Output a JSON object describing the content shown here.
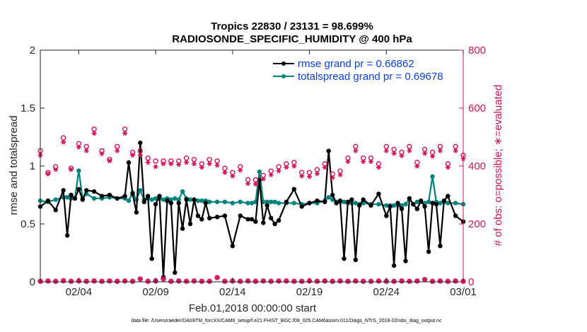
{
  "colors": {
    "rmse": "#000000",
    "spread": "#00827f",
    "obs": "#d6105a",
    "legend_text": "#0a3fe0",
    "axis": "#262626"
  },
  "footer": "data file: /Users/raeder/DAI/ATM_forcXX/CAM6_setup/f.e21.FHIST_BGC.f09_025.CAM6assim.011/Diags_NTrS_2018-02/obs_diag_output.nc",
  "chart_data": {
    "type": "line",
    "title": "Tropics 22830 / 23131 = 98.699%",
    "subtitle": "RADIOSONDE_SPECIFIC_HUMIDITY @ 400 hPa",
    "xlabel": "Feb.01,2018 00:00:00 start",
    "ylabel_left": "rmse and totalspread",
    "ylabel_right": "# of obs: o=possible; ∗=evaluated",
    "xlim": [
      0.5,
      28
    ],
    "ylim_left": [
      0,
      2
    ],
    "ylim_right": [
      0,
      800
    ],
    "grid": false,
    "legend_position": "top-right",
    "x_ticks": [
      {
        "x": 3,
        "label": "02/04"
      },
      {
        "x": 8,
        "label": "02/09"
      },
      {
        "x": 13,
        "label": "02/14"
      },
      {
        "x": 18,
        "label": "02/19"
      },
      {
        "x": 23,
        "label": "02/24"
      },
      {
        "x": 28,
        "label": "03/01"
      }
    ],
    "y_ticks_left": [
      {
        "v": 0,
        "label": "0"
      },
      {
        "v": 0.5,
        "label": "0.5"
      },
      {
        "v": 1,
        "label": "1"
      },
      {
        "v": 1.5,
        "label": "1.5"
      },
      {
        "v": 2,
        "label": "2"
      }
    ],
    "y_ticks_right": [
      {
        "v": 0,
        "label": "0"
      },
      {
        "v": 200,
        "label": "200"
      },
      {
        "v": 400,
        "label": "400"
      },
      {
        "v": 600,
        "label": "600"
      },
      {
        "v": 800,
        "label": "800"
      }
    ],
    "series": [
      {
        "name": "rmse grand pr = 0.66862",
        "kind": "rmse",
        "x": [
          0.5,
          1,
          1.5,
          2,
          2.25,
          2.5,
          2.75,
          3,
          3.25,
          3.5,
          4,
          4.5,
          5,
          5.5,
          6,
          6.25,
          6.5,
          6.75,
          7,
          7.25,
          7.5,
          7.75,
          8,
          8.25,
          8.5,
          8.75,
          9,
          9.25,
          9.5,
          9.75,
          10,
          10.25,
          10.5,
          10.75,
          11,
          11.25,
          11.5,
          12,
          12.5,
          13,
          13.5,
          14,
          14.25,
          14.5,
          14.75,
          15,
          15.25,
          15.5,
          15.75,
          16,
          16.5,
          17,
          17.5,
          18,
          18.5,
          19,
          19.25,
          19.5,
          19.75,
          20,
          20.25,
          20.5,
          20.75,
          21,
          21.25,
          21.5,
          22,
          22.5,
          23,
          23.25,
          23.5,
          23.75,
          24,
          24.25,
          24.5,
          24.75,
          25,
          25.25,
          25.5,
          25.75,
          26,
          26.25,
          26.5,
          26.75,
          27,
          27.5,
          28
        ],
        "values": [
          0.65,
          0.7,
          0.62,
          0.79,
          0.4,
          0.75,
          0.72,
          0.8,
          0.71,
          0.79,
          0.78,
          0.74,
          0.75,
          0.72,
          0.74,
          1.03,
          0.76,
          0.6,
          1.2,
          0.69,
          0.74,
          0.2,
          0.67,
          0.74,
          0.04,
          0.7,
          0.68,
          0.08,
          0.68,
          0.46,
          0.71,
          0.5,
          0.71,
          0.57,
          0.54,
          0.68,
          0.55,
          0.56,
          0.57,
          0.31,
          0.57,
          0.54,
          0.54,
          0.52,
          0.88,
          0.51,
          0.66,
          0.55,
          0.5,
          0.53,
          0.69,
          0.8,
          0.65,
          0.68,
          0.7,
          0.69,
          1.13,
          0.75,
          0.68,
          0.7,
          0.2,
          0.69,
          0.71,
          0.19,
          0.66,
          0.71,
          0.66,
          0.76,
          0.57,
          0.65,
          0.14,
          0.68,
          0.63,
          0.18,
          0.72,
          0.67,
          0.63,
          0.7,
          0.65,
          0.26,
          0.68,
          0.67,
          0.31,
          0.7,
          0.74,
          0.57,
          0.52
        ]
      },
      {
        "name": "totalspread grand pr = 0.69678",
        "kind": "spread",
        "x": [
          0.5,
          1,
          1.5,
          2,
          2.25,
          2.5,
          2.75,
          3,
          3.25,
          3.5,
          4,
          4.5,
          5,
          5.5,
          6,
          6.25,
          6.5,
          6.75,
          7,
          7.25,
          7.5,
          7.75,
          8,
          8.25,
          8.5,
          8.75,
          9,
          9.25,
          9.5,
          9.75,
          10,
          10.25,
          10.5,
          10.75,
          11,
          11.25,
          11.5,
          12,
          12.5,
          13,
          13.5,
          14,
          14.25,
          14.5,
          14.75,
          15,
          15.25,
          15.5,
          15.75,
          16,
          16.5,
          17,
          17.5,
          18,
          18.5,
          19,
          19.25,
          19.5,
          19.75,
          20,
          20.25,
          20.5,
          20.75,
          21,
          21.25,
          21.5,
          22,
          22.5,
          23,
          23.25,
          23.5,
          23.75,
          24,
          24.25,
          24.5,
          24.75,
          25,
          25.25,
          25.5,
          25.75,
          26,
          26.25,
          26.5,
          26.75,
          27,
          27.5,
          28
        ],
        "values": [
          0.7,
          0.69,
          0.71,
          0.73,
          0.73,
          0.72,
          0.72,
          0.96,
          0.72,
          0.76,
          0.72,
          0.72,
          0.73,
          0.72,
          0.72,
          0.7,
          0.77,
          0.71,
          0.79,
          0.71,
          0.72,
          0.71,
          0.72,
          0.72,
          0.71,
          0.72,
          0.71,
          0.72,
          0.71,
          0.78,
          0.72,
          0.71,
          0.71,
          0.7,
          0.7,
          0.7,
          0.69,
          0.69,
          0.69,
          0.68,
          0.69,
          0.68,
          0.68,
          0.69,
          0.95,
          0.69,
          0.69,
          0.69,
          0.69,
          0.68,
          0.68,
          0.68,
          0.67,
          0.68,
          0.68,
          0.7,
          0.73,
          0.71,
          0.69,
          0.69,
          0.69,
          0.68,
          0.68,
          0.68,
          0.67,
          0.68,
          0.67,
          0.67,
          0.66,
          0.66,
          0.66,
          0.66,
          0.66,
          0.67,
          0.72,
          0.67,
          0.69,
          0.69,
          0.68,
          0.69,
          0.91,
          0.69,
          0.68,
          0.69,
          0.68,
          0.68,
          0.67
        ]
      },
      {
        "name": "# of obs possible",
        "kind": "possible",
        "x": [
          0.5,
          1,
          1.5,
          2,
          2.5,
          3,
          3.5,
          4,
          4.5,
          5,
          5.5,
          6,
          6.5,
          7,
          7.5,
          8,
          8.5,
          9,
          9.5,
          10,
          10.5,
          11,
          11.5,
          12,
          12.5,
          13,
          13.5,
          14,
          14.5,
          15,
          15.5,
          16,
          16.5,
          17,
          17.5,
          18,
          18.5,
          19,
          19.5,
          20,
          20.5,
          21,
          21.5,
          22,
          22.5,
          23,
          23.5,
          24,
          24.5,
          25,
          25.5,
          26,
          26.5,
          27,
          27.5,
          28
        ],
        "values": [
          445,
          370,
          390,
          490,
          385,
          470,
          460,
          520,
          445,
          415,
          460,
          520,
          440,
          445,
          420,
          410,
          410,
          410,
          410,
          420,
          415,
          400,
          415,
          410,
          385,
          370,
          390,
          345,
          345,
          360,
          375,
          390,
          400,
          405,
          370,
          370,
          380,
          400,
          365,
          375,
          420,
          460,
          420,
          420,
          400,
          460,
          450,
          440,
          460,
          405,
          450,
          440,
          460,
          400,
          460,
          430
        ]
      },
      {
        "name": "# of obs evaluated",
        "kind": "evaluated",
        "x": [
          0.5,
          1,
          1.5,
          2,
          2.5,
          3,
          3.5,
          4,
          4.5,
          5,
          5.5,
          6,
          6.5,
          7,
          7.5,
          8,
          8.5,
          9,
          9.5,
          10,
          10.5,
          11,
          11.5,
          12,
          12.5,
          13,
          13.5,
          14,
          14.5,
          15,
          15.5,
          16,
          16.5,
          17,
          17.5,
          18,
          18.5,
          19,
          19.5,
          20,
          20.5,
          21,
          21.5,
          22,
          22.5,
          23,
          23.5,
          24,
          24.5,
          25,
          25.5,
          26,
          26.5,
          27,
          27.5,
          28
        ],
        "values": [
          440,
          375,
          390,
          485,
          390,
          468,
          455,
          515,
          445,
          420,
          455,
          515,
          440,
          440,
          415,
          400,
          410,
          410,
          408,
          415,
          410,
          398,
          410,
          405,
          380,
          368,
          388,
          342,
          340,
          358,
          372,
          386,
          398,
          402,
          368,
          366,
          376,
          398,
          362,
          372,
          418,
          455,
          418,
          418,
          398,
          455,
          446,
          438,
          455,
          402,
          446,
          436,
          455,
          398,
          455,
          428
        ]
      },
      {
        "name": "# of obs near zero",
        "kind": "bottom",
        "x": [
          0.5,
          1,
          1.5,
          2,
          2.5,
          3,
          3.5,
          4,
          4.5,
          5,
          5.5,
          6,
          6.5,
          7,
          7.5,
          8,
          8.5,
          9,
          9.5,
          10,
          10.5,
          11,
          11.5,
          12,
          12.5,
          13,
          13.5,
          14,
          14.5,
          15,
          15.5,
          16,
          16.5,
          17,
          17.5,
          18,
          18.5,
          19,
          19.5,
          20,
          20.5,
          21,
          21.5,
          22,
          22.5,
          23,
          23.5,
          24,
          24.5,
          25,
          25.5,
          26,
          26.5,
          27,
          27.5,
          28
        ],
        "values": [
          2,
          3,
          2,
          4,
          2,
          3,
          2,
          3,
          2,
          3,
          2,
          3,
          2,
          10,
          2,
          3,
          10,
          2,
          3,
          2,
          3,
          2,
          2,
          15,
          2,
          3,
          2,
          3,
          2,
          3,
          2,
          3,
          3,
          2,
          2,
          3,
          2,
          3,
          2,
          3,
          2,
          3,
          2,
          2,
          3,
          2,
          2,
          3,
          2,
          3,
          8,
          2,
          3,
          2,
          3,
          2
        ]
      }
    ]
  }
}
